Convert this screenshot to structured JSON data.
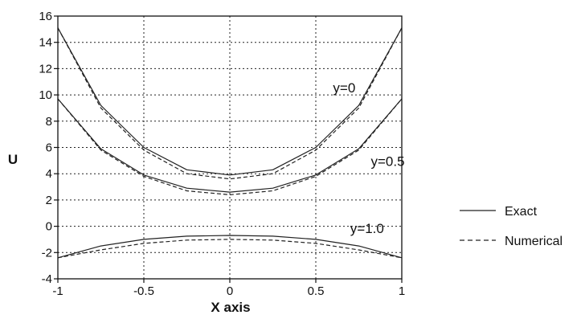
{
  "chart_data": {
    "type": "line",
    "xlabel": "X axis",
    "ylabel": "U",
    "xlim": [
      -1,
      1
    ],
    "ylim": [
      -4,
      16
    ],
    "xticks": [
      -1,
      -0.5,
      0,
      0.5,
      1
    ],
    "xtick_labels": [
      "-1",
      "-0.5",
      "0",
      "0.5",
      "1"
    ],
    "yticks": [
      -4,
      -2,
      0,
      2,
      4,
      6,
      8,
      10,
      12,
      14,
      16
    ],
    "ytick_labels": [
      "-4",
      "-2",
      "0",
      "2",
      "4",
      "6",
      "8",
      "10",
      "12",
      "14",
      "16"
    ],
    "grid": true,
    "legend": {
      "placement": "right",
      "entries": [
        {
          "label": "Exact",
          "style": "solid"
        },
        {
          "label": "Numerical",
          "style": "dashed"
        }
      ]
    },
    "annotations": [
      {
        "text": "y=0",
        "x": 0.6,
        "y": 10.2
      },
      {
        "text": "y=0.5",
        "x": 0.82,
        "y": 4.6
      },
      {
        "text": "y=1.0",
        "x": 0.7,
        "y": -0.5
      }
    ],
    "series": [
      {
        "group": "y=0",
        "style": "solid",
        "x": [
          -1,
          -0.75,
          -0.5,
          -0.25,
          0,
          0.25,
          0.5,
          0.75,
          1
        ],
        "y": [
          15.1,
          9.2,
          6.0,
          4.3,
          3.9,
          4.3,
          6.0,
          9.2,
          15.1
        ]
      },
      {
        "group": "y=0",
        "style": "dashed",
        "x": [
          -1,
          -0.75,
          -0.5,
          -0.25,
          0,
          0.25,
          0.5,
          0.75,
          1
        ],
        "y": [
          15.1,
          9.0,
          5.8,
          4.0,
          3.6,
          4.0,
          5.8,
          9.0,
          15.1
        ]
      },
      {
        "group": "y=0.5",
        "style": "solid",
        "x": [
          -1,
          -0.75,
          -0.5,
          -0.25,
          0,
          0.25,
          0.5,
          0.75,
          1
        ],
        "y": [
          9.7,
          5.9,
          3.9,
          2.9,
          2.6,
          2.9,
          3.9,
          5.9,
          9.7
        ]
      },
      {
        "group": "y=0.5",
        "style": "dashed",
        "x": [
          -1,
          -0.75,
          -0.5,
          -0.25,
          0,
          0.25,
          0.5,
          0.75,
          1
        ],
        "y": [
          9.7,
          5.8,
          3.8,
          2.7,
          2.4,
          2.7,
          3.8,
          5.8,
          9.7
        ]
      },
      {
        "group": "y=1.0",
        "style": "solid",
        "x": [
          -1,
          -0.75,
          -0.5,
          -0.25,
          0,
          0.25,
          0.5,
          0.75,
          1
        ],
        "y": [
          -2.4,
          -1.5,
          -1.0,
          -0.75,
          -0.7,
          -0.75,
          -1.0,
          -1.5,
          -2.4
        ]
      },
      {
        "group": "y=1.0",
        "style": "dashed",
        "x": [
          -1,
          -0.75,
          -0.5,
          -0.25,
          0,
          0.25,
          0.5,
          0.75,
          1
        ],
        "y": [
          -2.4,
          -1.8,
          -1.3,
          -1.05,
          -1.0,
          -1.05,
          -1.3,
          -1.8,
          -2.4
        ]
      }
    ]
  }
}
